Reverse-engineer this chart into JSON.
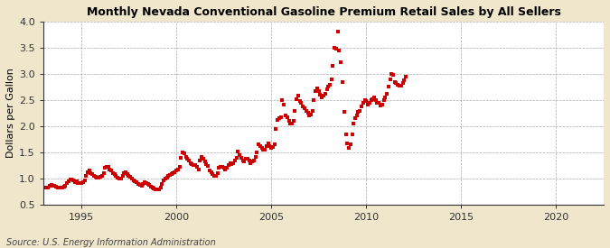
{
  "title": "Monthly Nevada Conventional Gasoline Premium Retail Sales by All Sellers",
  "ylabel": "Dollars per Gallon",
  "source": "Source: U.S. Energy Information Administration",
  "fig_background_color": "#f0e6cc",
  "plot_background_color": "#ffffff",
  "marker_color": "#cc0000",
  "xlim": [
    1993.0,
    2022.5
  ],
  "ylim": [
    0.5,
    4.0
  ],
  "xticks": [
    1995,
    2000,
    2005,
    2010,
    2015,
    2020
  ],
  "yticks": [
    0.5,
    1.0,
    1.5,
    2.0,
    2.5,
    3.0,
    3.5,
    4.0
  ],
  "data": [
    [
      1993.17,
      0.82
    ],
    [
      1993.25,
      0.83
    ],
    [
      1993.33,
      0.87
    ],
    [
      1993.42,
      0.88
    ],
    [
      1993.5,
      0.86
    ],
    [
      1993.58,
      0.87
    ],
    [
      1993.67,
      0.84
    ],
    [
      1993.75,
      0.83
    ],
    [
      1993.83,
      0.82
    ],
    [
      1993.92,
      0.83
    ],
    [
      1994.0,
      0.83
    ],
    [
      1994.08,
      0.84
    ],
    [
      1994.17,
      0.86
    ],
    [
      1994.25,
      0.91
    ],
    [
      1994.33,
      0.95
    ],
    [
      1994.42,
      0.98
    ],
    [
      1994.5,
      0.98
    ],
    [
      1994.58,
      0.96
    ],
    [
      1994.67,
      0.93
    ],
    [
      1994.75,
      0.94
    ],
    [
      1994.83,
      0.92
    ],
    [
      1994.92,
      0.91
    ],
    [
      1995.0,
      0.92
    ],
    [
      1995.08,
      0.93
    ],
    [
      1995.17,
      0.97
    ],
    [
      1995.25,
      1.05
    ],
    [
      1995.33,
      1.12
    ],
    [
      1995.42,
      1.15
    ],
    [
      1995.5,
      1.1
    ],
    [
      1995.58,
      1.08
    ],
    [
      1995.67,
      1.05
    ],
    [
      1995.75,
      1.03
    ],
    [
      1995.83,
      1.02
    ],
    [
      1995.92,
      1.02
    ],
    [
      1996.0,
      1.03
    ],
    [
      1996.08,
      1.05
    ],
    [
      1996.17,
      1.1
    ],
    [
      1996.25,
      1.2
    ],
    [
      1996.33,
      1.23
    ],
    [
      1996.42,
      1.22
    ],
    [
      1996.5,
      1.18
    ],
    [
      1996.58,
      1.15
    ],
    [
      1996.67,
      1.1
    ],
    [
      1996.75,
      1.08
    ],
    [
      1996.83,
      1.05
    ],
    [
      1996.92,
      1.02
    ],
    [
      1997.0,
      1.0
    ],
    [
      1997.08,
      1.0
    ],
    [
      1997.17,
      1.05
    ],
    [
      1997.25,
      1.1
    ],
    [
      1997.33,
      1.12
    ],
    [
      1997.42,
      1.08
    ],
    [
      1997.5,
      1.05
    ],
    [
      1997.58,
      1.03
    ],
    [
      1997.67,
      1.0
    ],
    [
      1997.75,
      0.97
    ],
    [
      1997.83,
      0.95
    ],
    [
      1997.92,
      0.93
    ],
    [
      1998.0,
      0.9
    ],
    [
      1998.08,
      0.88
    ],
    [
      1998.17,
      0.87
    ],
    [
      1998.25,
      0.9
    ],
    [
      1998.33,
      0.93
    ],
    [
      1998.42,
      0.92
    ],
    [
      1998.5,
      0.9
    ],
    [
      1998.58,
      0.88
    ],
    [
      1998.67,
      0.85
    ],
    [
      1998.75,
      0.83
    ],
    [
      1998.83,
      0.81
    ],
    [
      1998.92,
      0.8
    ],
    [
      1999.0,
      0.79
    ],
    [
      1999.08,
      0.8
    ],
    [
      1999.17,
      0.83
    ],
    [
      1999.25,
      0.9
    ],
    [
      1999.33,
      0.96
    ],
    [
      1999.42,
      1.0
    ],
    [
      1999.5,
      1.02
    ],
    [
      1999.58,
      1.05
    ],
    [
      1999.67,
      1.07
    ],
    [
      1999.75,
      1.08
    ],
    [
      1999.83,
      1.1
    ],
    [
      1999.92,
      1.12
    ],
    [
      2000.0,
      1.15
    ],
    [
      2000.08,
      1.18
    ],
    [
      2000.17,
      1.22
    ],
    [
      2000.25,
      1.4
    ],
    [
      2000.33,
      1.5
    ],
    [
      2000.42,
      1.48
    ],
    [
      2000.5,
      1.42
    ],
    [
      2000.58,
      1.38
    ],
    [
      2000.67,
      1.35
    ],
    [
      2000.75,
      1.3
    ],
    [
      2000.83,
      1.28
    ],
    [
      2000.92,
      1.25
    ],
    [
      2001.0,
      1.25
    ],
    [
      2001.08,
      1.22
    ],
    [
      2001.17,
      1.18
    ],
    [
      2001.25,
      1.35
    ],
    [
      2001.33,
      1.42
    ],
    [
      2001.42,
      1.38
    ],
    [
      2001.5,
      1.32
    ],
    [
      2001.58,
      1.28
    ],
    [
      2001.67,
      1.24
    ],
    [
      2001.75,
      1.15
    ],
    [
      2001.83,
      1.12
    ],
    [
      2001.92,
      1.08
    ],
    [
      2002.0,
      1.05
    ],
    [
      2002.08,
      1.05
    ],
    [
      2002.17,
      1.1
    ],
    [
      2002.25,
      1.2
    ],
    [
      2002.33,
      1.22
    ],
    [
      2002.42,
      1.22
    ],
    [
      2002.5,
      1.2
    ],
    [
      2002.58,
      1.18
    ],
    [
      2002.67,
      1.2
    ],
    [
      2002.75,
      1.25
    ],
    [
      2002.83,
      1.3
    ],
    [
      2002.92,
      1.28
    ],
    [
      2003.0,
      1.3
    ],
    [
      2003.08,
      1.35
    ],
    [
      2003.17,
      1.4
    ],
    [
      2003.25,
      1.52
    ],
    [
      2003.33,
      1.45
    ],
    [
      2003.42,
      1.4
    ],
    [
      2003.5,
      1.35
    ],
    [
      2003.58,
      1.32
    ],
    [
      2003.67,
      1.38
    ],
    [
      2003.75,
      1.38
    ],
    [
      2003.83,
      1.35
    ],
    [
      2003.92,
      1.3
    ],
    [
      2004.0,
      1.32
    ],
    [
      2004.08,
      1.35
    ],
    [
      2004.17,
      1.42
    ],
    [
      2004.25,
      1.5
    ],
    [
      2004.33,
      1.65
    ],
    [
      2004.42,
      1.62
    ],
    [
      2004.5,
      1.58
    ],
    [
      2004.58,
      1.55
    ],
    [
      2004.67,
      1.55
    ],
    [
      2004.75,
      1.62
    ],
    [
      2004.83,
      1.68
    ],
    [
      2004.92,
      1.62
    ],
    [
      2005.0,
      1.58
    ],
    [
      2005.08,
      1.6
    ],
    [
      2005.17,
      1.65
    ],
    [
      2005.25,
      1.95
    ],
    [
      2005.33,
      2.12
    ],
    [
      2005.42,
      2.15
    ],
    [
      2005.5,
      2.18
    ],
    [
      2005.58,
      2.5
    ],
    [
      2005.67,
      2.42
    ],
    [
      2005.75,
      2.2
    ],
    [
      2005.83,
      2.18
    ],
    [
      2005.92,
      2.1
    ],
    [
      2006.0,
      2.05
    ],
    [
      2006.08,
      2.05
    ],
    [
      2006.17,
      2.1
    ],
    [
      2006.25,
      2.3
    ],
    [
      2006.33,
      2.52
    ],
    [
      2006.42,
      2.58
    ],
    [
      2006.5,
      2.48
    ],
    [
      2006.58,
      2.45
    ],
    [
      2006.67,
      2.38
    ],
    [
      2006.75,
      2.35
    ],
    [
      2006.83,
      2.3
    ],
    [
      2006.92,
      2.25
    ],
    [
      2007.0,
      2.2
    ],
    [
      2007.08,
      2.22
    ],
    [
      2007.17,
      2.3
    ],
    [
      2007.25,
      2.5
    ],
    [
      2007.33,
      2.68
    ],
    [
      2007.42,
      2.72
    ],
    [
      2007.5,
      2.68
    ],
    [
      2007.58,
      2.6
    ],
    [
      2007.67,
      2.55
    ],
    [
      2007.75,
      2.58
    ],
    [
      2007.83,
      2.62
    ],
    [
      2007.92,
      2.7
    ],
    [
      2008.0,
      2.75
    ],
    [
      2008.08,
      2.8
    ],
    [
      2008.17,
      2.9
    ],
    [
      2008.25,
      3.15
    ],
    [
      2008.33,
      3.5
    ],
    [
      2008.42,
      3.48
    ],
    [
      2008.5,
      3.8
    ],
    [
      2008.58,
      3.45
    ],
    [
      2008.67,
      3.22
    ],
    [
      2008.75,
      2.85
    ],
    [
      2008.83,
      2.28
    ],
    [
      2008.92,
      1.85
    ],
    [
      2009.0,
      1.68
    ],
    [
      2009.08,
      1.58
    ],
    [
      2009.17,
      1.65
    ],
    [
      2009.25,
      1.85
    ],
    [
      2009.33,
      2.05
    ],
    [
      2009.42,
      2.15
    ],
    [
      2009.5,
      2.2
    ],
    [
      2009.58,
      2.28
    ],
    [
      2009.67,
      2.3
    ],
    [
      2009.75,
      2.38
    ],
    [
      2009.83,
      2.45
    ],
    [
      2009.92,
      2.5
    ],
    [
      2010.0,
      2.48
    ],
    [
      2010.08,
      2.42
    ],
    [
      2010.17,
      2.45
    ],
    [
      2010.25,
      2.5
    ],
    [
      2010.33,
      2.52
    ],
    [
      2010.42,
      2.55
    ],
    [
      2010.5,
      2.5
    ],
    [
      2010.58,
      2.45
    ],
    [
      2010.67,
      2.45
    ],
    [
      2010.75,
      2.4
    ],
    [
      2010.83,
      2.42
    ],
    [
      2010.92,
      2.5
    ],
    [
      2011.0,
      2.55
    ],
    [
      2011.08,
      2.62
    ],
    [
      2011.17,
      2.75
    ],
    [
      2011.25,
      2.9
    ],
    [
      2011.33,
      3.0
    ],
    [
      2011.42,
      2.98
    ],
    [
      2011.5,
      2.85
    ],
    [
      2011.58,
      2.82
    ],
    [
      2011.67,
      2.8
    ],
    [
      2011.75,
      2.78
    ],
    [
      2011.83,
      2.78
    ],
    [
      2011.92,
      2.82
    ],
    [
      2012.0,
      2.88
    ],
    [
      2012.08,
      2.95
    ]
  ]
}
